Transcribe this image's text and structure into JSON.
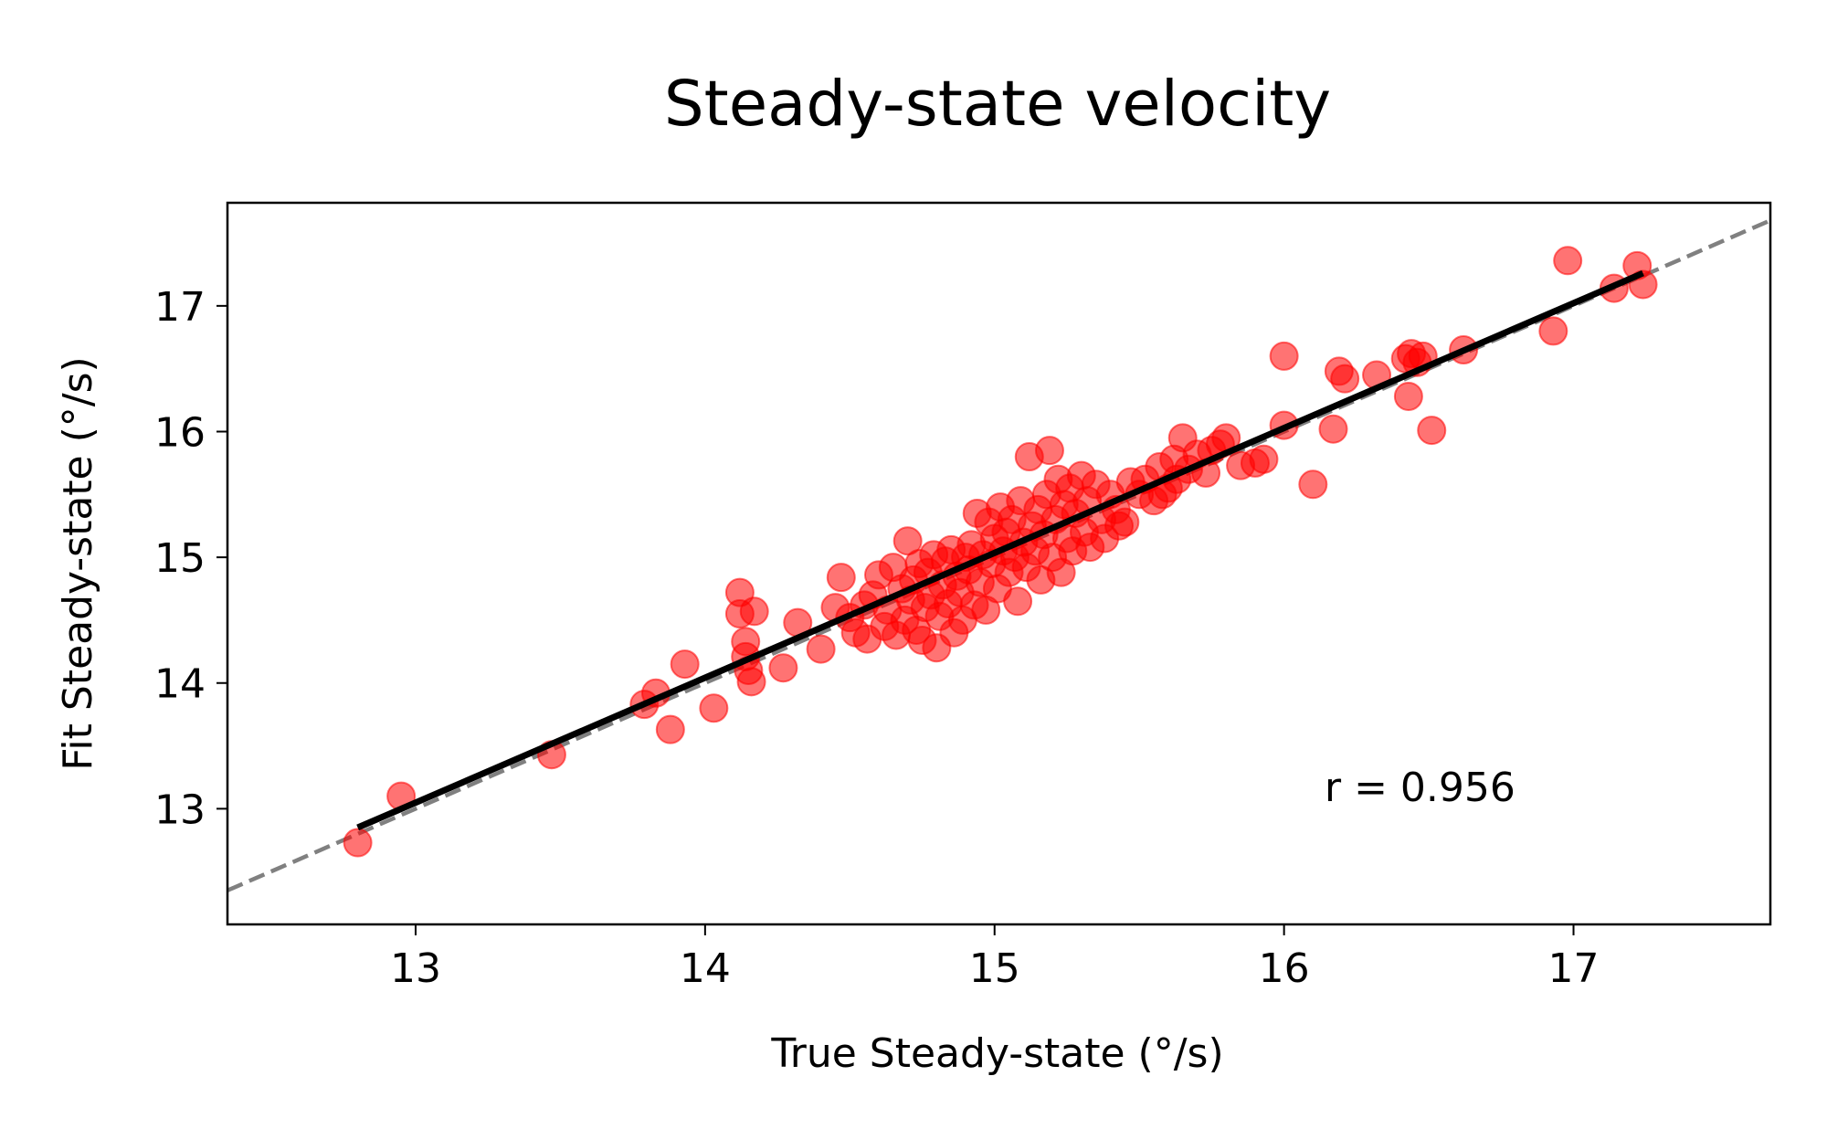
{
  "chart_data": {
    "type": "scatter",
    "title": "Steady-state velocity",
    "xlabel": "True Steady-state (°/s)",
    "ylabel": "Fit Steady-state (°/s)",
    "xlim": [
      12.35,
      17.68
    ],
    "ylim": [
      12.08,
      17.82
    ],
    "xticks": [
      13,
      14,
      15,
      16,
      17
    ],
    "yticks": [
      13,
      14,
      15,
      16,
      17
    ],
    "grid": false,
    "annotation": "r = 0.956",
    "identity_line": {
      "style": "dashed",
      "color": "#808080",
      "x": [
        12.35,
        17.68
      ],
      "y": [
        12.35,
        17.68
      ]
    },
    "fit_line": {
      "color": "#000000",
      "x": [
        12.8,
        17.24
      ],
      "y": [
        12.85,
        17.26
      ]
    },
    "series": [
      {
        "color": "#ff0000",
        "points": [
          [
            12.8,
            12.73
          ],
          [
            12.95,
            13.1
          ],
          [
            13.47,
            13.43
          ],
          [
            13.79,
            13.83
          ],
          [
            13.83,
            13.92
          ],
          [
            13.88,
            13.63
          ],
          [
            13.93,
            14.15
          ],
          [
            14.03,
            13.8
          ],
          [
            14.12,
            14.72
          ],
          [
            14.12,
            14.55
          ],
          [
            14.14,
            14.21
          ],
          [
            14.14,
            14.33
          ],
          [
            14.15,
            14.1
          ],
          [
            14.16,
            14.01
          ],
          [
            14.17,
            14.57
          ],
          [
            14.27,
            14.12
          ],
          [
            14.32,
            14.48
          ],
          [
            14.4,
            14.27
          ],
          [
            14.45,
            14.6
          ],
          [
            14.47,
            14.84
          ],
          [
            14.5,
            14.52
          ],
          [
            14.52,
            14.4
          ],
          [
            14.55,
            14.62
          ],
          [
            14.56,
            14.35
          ],
          [
            14.58,
            14.7
          ],
          [
            14.6,
            14.86
          ],
          [
            14.62,
            14.45
          ],
          [
            14.63,
            14.58
          ],
          [
            14.65,
            14.92
          ],
          [
            14.66,
            14.38
          ],
          [
            14.68,
            14.75
          ],
          [
            14.69,
            14.5
          ],
          [
            14.7,
            15.13
          ],
          [
            14.71,
            14.66
          ],
          [
            14.72,
            14.82
          ],
          [
            14.73,
            14.42
          ],
          [
            14.74,
            14.95
          ],
          [
            14.75,
            14.34
          ],
          [
            14.76,
            14.6
          ],
          [
            14.77,
            14.88
          ],
          [
            14.78,
            14.7
          ],
          [
            14.79,
            15.02
          ],
          [
            14.8,
            14.28
          ],
          [
            14.81,
            14.53
          ],
          [
            14.82,
            14.78
          ],
          [
            14.83,
            14.97
          ],
          [
            14.84,
            14.63
          ],
          [
            14.85,
            15.06
          ],
          [
            14.86,
            14.4
          ],
          [
            14.87,
            14.85
          ],
          [
            14.88,
            14.72
          ],
          [
            14.89,
            14.5
          ],
          [
            14.9,
            15.0
          ],
          [
            14.91,
            14.9
          ],
          [
            14.92,
            15.1
          ],
          [
            14.93,
            14.62
          ],
          [
            14.94,
            15.35
          ],
          [
            14.95,
            14.8
          ],
          [
            14.96,
            15.02
          ],
          [
            14.97,
            14.58
          ],
          [
            14.98,
            15.28
          ],
          [
            14.99,
            14.95
          ],
          [
            15.0,
            15.15
          ],
          [
            15.01,
            14.75
          ],
          [
            15.02,
            15.4
          ],
          [
            15.03,
            15.05
          ],
          [
            15.04,
            15.2
          ],
          [
            15.05,
            14.88
          ],
          [
            15.06,
            15.3
          ],
          [
            15.07,
            15.0
          ],
          [
            15.08,
            14.65
          ],
          [
            15.09,
            15.45
          ],
          [
            15.1,
            15.12
          ],
          [
            15.11,
            14.92
          ],
          [
            15.12,
            15.8
          ],
          [
            15.13,
            15.25
          ],
          [
            15.14,
            15.05
          ],
          [
            15.15,
            15.38
          ],
          [
            15.16,
            14.82
          ],
          [
            15.17,
            15.18
          ],
          [
            15.18,
            15.5
          ],
          [
            15.19,
            15.85
          ],
          [
            15.2,
            15.0
          ],
          [
            15.21,
            15.3
          ],
          [
            15.22,
            15.62
          ],
          [
            15.23,
            14.88
          ],
          [
            15.24,
            15.42
          ],
          [
            15.25,
            15.15
          ],
          [
            15.26,
            15.55
          ],
          [
            15.27,
            15.05
          ],
          [
            15.28,
            15.35
          ],
          [
            15.3,
            15.65
          ],
          [
            15.31,
            15.2
          ],
          [
            15.32,
            15.45
          ],
          [
            15.33,
            15.08
          ],
          [
            15.35,
            15.58
          ],
          [
            15.37,
            15.3
          ],
          [
            15.38,
            15.15
          ],
          [
            15.4,
            15.5
          ],
          [
            15.42,
            15.38
          ],
          [
            15.43,
            15.25
          ],
          [
            15.45,
            15.28
          ],
          [
            15.47,
            15.6
          ],
          [
            15.5,
            15.5
          ],
          [
            15.52,
            15.62
          ],
          [
            15.55,
            15.45
          ],
          [
            15.57,
            15.72
          ],
          [
            15.58,
            15.5
          ],
          [
            15.6,
            15.55
          ],
          [
            15.62,
            15.78
          ],
          [
            15.63,
            15.62
          ],
          [
            15.65,
            15.95
          ],
          [
            15.67,
            15.7
          ],
          [
            15.7,
            15.82
          ],
          [
            15.73,
            15.67
          ],
          [
            15.75,
            15.85
          ],
          [
            15.78,
            15.9
          ],
          [
            15.8,
            15.95
          ],
          [
            15.85,
            15.73
          ],
          [
            15.9,
            15.75
          ],
          [
            15.93,
            15.78
          ],
          [
            16.0,
            16.6
          ],
          [
            16.0,
            16.05
          ],
          [
            16.1,
            15.58
          ],
          [
            16.17,
            16.02
          ],
          [
            16.19,
            16.48
          ],
          [
            16.21,
            16.42
          ],
          [
            16.32,
            16.45
          ],
          [
            16.42,
            16.58
          ],
          [
            16.43,
            16.28
          ],
          [
            16.44,
            16.62
          ],
          [
            16.46,
            16.55
          ],
          [
            16.48,
            16.6
          ],
          [
            16.51,
            16.01
          ],
          [
            16.62,
            16.65
          ],
          [
            16.93,
            16.8
          ],
          [
            16.98,
            17.36
          ],
          [
            17.14,
            17.14
          ],
          [
            17.22,
            17.32
          ],
          [
            17.24,
            17.17
          ]
        ]
      }
    ]
  }
}
